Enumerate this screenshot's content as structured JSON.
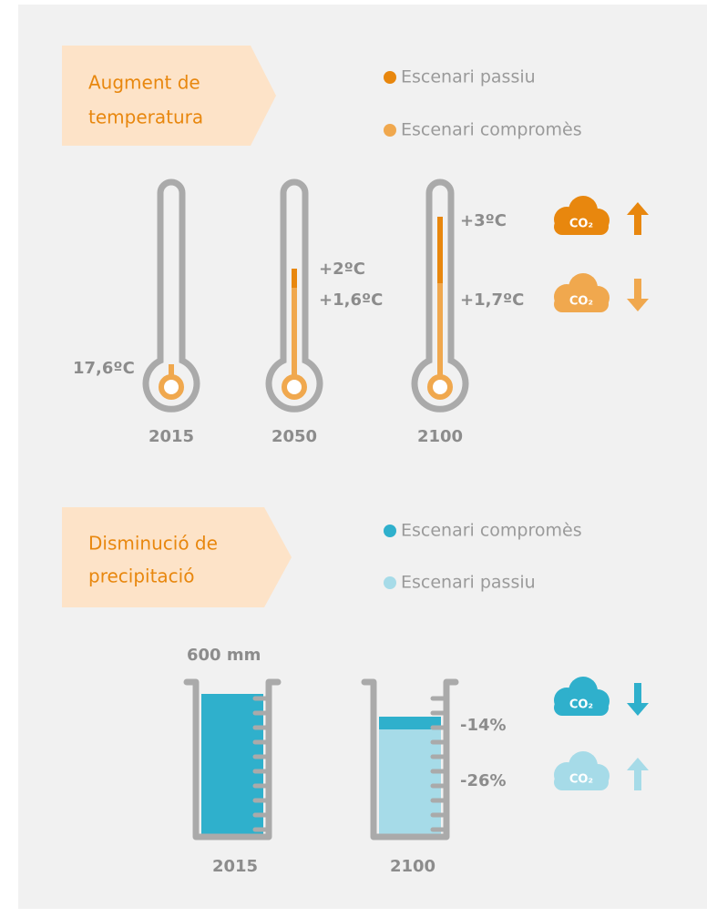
{
  "temperature": {
    "title": [
      "Augment de",
      "temperatura"
    ],
    "legend": [
      "Escenari passiu",
      "Escenari compromès"
    ],
    "thermometers": [
      {
        "year": "2015",
        "labels": [
          "17,6ºC"
        ]
      },
      {
        "year": "2050",
        "labels": [
          "+2ºC",
          "+1,6ºC"
        ]
      },
      {
        "year": "2100",
        "labels": [
          "+3ºC",
          "+1,7ºC"
        ]
      }
    ],
    "icons": [
      "CO₂",
      "CO₂"
    ]
  },
  "precipitation": {
    "title": [
      "Disminució de",
      "precipitació"
    ],
    "legend": [
      "Escenari compromès",
      "Escenari passiu"
    ],
    "amount": "600 mm",
    "beakers": [
      {
        "year": "2015",
        "labels": []
      },
      {
        "year": "2100",
        "labels": [
          "-14%",
          "-26%"
        ]
      }
    ],
    "icons": [
      "CO₂",
      "CO₂"
    ]
  }
}
